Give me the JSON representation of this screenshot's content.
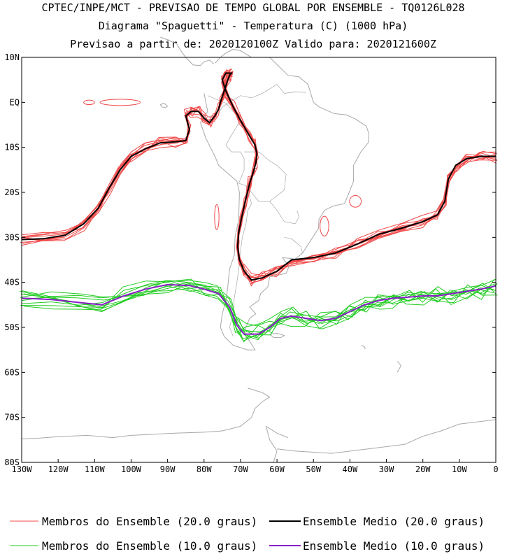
{
  "chart_data": {
    "type": "line",
    "title": [
      "CPTEC/INPE/MCT - PREVISAO DE TEMPO GLOBAL POR ENSEMBLE - TQ0126L028",
      "Diagrama \"Spaguetti\" - Temperatura (C) (1000 hPa)",
      "Previsao a partir de: 2020120100Z  Valido para: 2020121600Z"
    ],
    "x_range": [
      -130,
      0
    ],
    "y_range": [
      -80,
      10
    ],
    "x_ticks": [
      {
        "value": -130,
        "label": "130W"
      },
      {
        "value": -120,
        "label": "120W"
      },
      {
        "value": -110,
        "label": "110W"
      },
      {
        "value": -100,
        "label": "100W"
      },
      {
        "value": -90,
        "label": "90W"
      },
      {
        "value": -80,
        "label": "80W"
      },
      {
        "value": -70,
        "label": "70W"
      },
      {
        "value": -60,
        "label": "60W"
      },
      {
        "value": -50,
        "label": "50W"
      },
      {
        "value": -40,
        "label": "40W"
      },
      {
        "value": -30,
        "label": "30W"
      },
      {
        "value": -20,
        "label": "20W"
      },
      {
        "value": -10,
        "label": "10W"
      },
      {
        "value": 0,
        "label": "0"
      }
    ],
    "y_ticks": [
      {
        "value": 10,
        "label": "10N"
      },
      {
        "value": 0,
        "label": "EQ"
      },
      {
        "value": -10,
        "label": "10S"
      },
      {
        "value": -20,
        "label": "20S"
      },
      {
        "value": -30,
        "label": "30S"
      },
      {
        "value": -40,
        "label": "40S"
      },
      {
        "value": -50,
        "label": "50S"
      },
      {
        "value": -60,
        "label": "60S"
      },
      {
        "value": -70,
        "label": "70S"
      },
      {
        "value": -80,
        "label": "80S"
      }
    ],
    "series": [
      {
        "name": "Membros do Ensemble (20.0 graus)",
        "role": "members",
        "color": "#f04848",
        "member_count": 10,
        "x": [
          -130,
          -124,
          -118,
          -113,
          -109,
          -106,
          -103,
          -100,
          -96,
          -92,
          -88,
          -85,
          -84,
          -85,
          -83.5,
          -81.5,
          -80,
          -78.5,
          -77,
          -76,
          -75.5,
          -74.5,
          -73.5,
          -73,
          -72.5,
          -74,
          -75,
          -74,
          -72,
          -70,
          -67.5,
          -66,
          -65.5,
          -65.8,
          -66.5,
          -67.5,
          -68.7,
          -69.8,
          -70.5,
          -70.8,
          -70.3,
          -69,
          -67,
          -64,
          -60,
          -56,
          -50,
          -44,
          -38,
          -32,
          -26,
          -20,
          -16,
          -14,
          -13,
          -11,
          -8,
          -4,
          0
        ],
        "y": [
          -30.5,
          -30.3,
          -29.5,
          -27,
          -23.5,
          -19,
          -15,
          -12,
          -10.3,
          -9,
          -8.8,
          -8.5,
          -6,
          -3,
          -2,
          -2,
          -3.5,
          -4.5,
          -3,
          -1.5,
          0,
          2.5,
          5,
          6,
          6.5,
          6.5,
          5,
          2.5,
          -1,
          -4,
          -7.5,
          -9.5,
          -11.5,
          -13.5,
          -15.5,
          -18,
          -22,
          -26,
          -29,
          -32,
          -35,
          -37.5,
          -39.5,
          -39,
          -37.5,
          -35,
          -34.5,
          -33.5,
          -31.5,
          -29.3,
          -28,
          -26.5,
          -25,
          -22,
          -17,
          -14,
          -12.5,
          -12,
          -12
        ],
        "spread": 1.1
      },
      {
        "name": "Ensemble Medio (20.0 graus)",
        "role": "mean",
        "color": "#000000",
        "x": [
          -130,
          -124,
          -118,
          -113,
          -109,
          -106,
          -103,
          -100,
          -96,
          -92,
          -88,
          -85,
          -84,
          -85,
          -83.5,
          -81.5,
          -80,
          -78.5,
          -77,
          -76,
          -75.5,
          -74.5,
          -73.5,
          -73,
          -72.5,
          -74,
          -75,
          -74,
          -72,
          -70,
          -67.5,
          -66,
          -65.5,
          -65.8,
          -66.5,
          -67.5,
          -68.7,
          -69.8,
          -70.5,
          -70.8,
          -70.3,
          -69,
          -67,
          -64,
          -60,
          -56,
          -50,
          -44,
          -38,
          -32,
          -26,
          -20,
          -16,
          -14,
          -13,
          -11,
          -8,
          -4,
          0
        ],
        "y": [
          -30.5,
          -30.3,
          -29.5,
          -27,
          -23.5,
          -19,
          -15,
          -12,
          -10.3,
          -9,
          -8.8,
          -8.5,
          -6,
          -3,
          -2,
          -2,
          -3.5,
          -4.5,
          -3,
          -1.5,
          0,
          2.5,
          5,
          6,
          6.5,
          6.5,
          5,
          2.5,
          -1,
          -4,
          -7.5,
          -9.5,
          -11.5,
          -13.5,
          -15.5,
          -18,
          -22,
          -26,
          -29,
          -32,
          -35,
          -37.5,
          -39.5,
          -39,
          -37.5,
          -35,
          -34.5,
          -33.5,
          -31.5,
          -29.3,
          -28,
          -26.5,
          -25,
          -22,
          -17,
          -14,
          -12.5,
          -12,
          -12
        ]
      },
      {
        "name": "Membros do Ensemble (10.0 graus)",
        "role": "members",
        "color": "#22cc22",
        "member_count": 10,
        "x": [
          -130,
          -122,
          -114,
          -108,
          -102,
          -96,
          -90,
          -84,
          -80,
          -76,
          -73,
          -71,
          -69,
          -65,
          -62,
          -59,
          -56,
          -52,
          -48,
          -44,
          -40,
          -36,
          -32,
          -28,
          -24,
          -20,
          -16,
          -12,
          -8,
          -4,
          0
        ],
        "y": [
          -43.5,
          -43.8,
          -44.5,
          -45,
          -43,
          -41.5,
          -40.5,
          -40.7,
          -41.5,
          -42.5,
          -45.5,
          -49.5,
          -51.5,
          -51.5,
          -50,
          -48,
          -47.5,
          -48,
          -48.5,
          -48,
          -46.5,
          -45,
          -44,
          -43.5,
          -43.3,
          -43,
          -43,
          -42.5,
          -42,
          -41.5,
          -40.8
        ],
        "spread": 1.5
      },
      {
        "name": "Ensemble Medio (10.0 graus)",
        "role": "mean",
        "color": "#8a1fc9",
        "x": [
          -130,
          -122,
          -114,
          -108,
          -102,
          -96,
          -90,
          -84,
          -80,
          -76,
          -73,
          -71,
          -69,
          -65,
          -62,
          -59,
          -56,
          -52,
          -48,
          -44,
          -40,
          -36,
          -32,
          -28,
          -24,
          -20,
          -16,
          -12,
          -8,
          -4,
          0
        ],
        "y": [
          -43.5,
          -43.8,
          -44.5,
          -45,
          -43,
          -41.5,
          -40.5,
          -40.7,
          -41.5,
          -42.5,
          -45.5,
          -49.5,
          -51.5,
          -51.5,
          -50,
          -48,
          -47.5,
          -48,
          -48.5,
          -48,
          -46.5,
          -45,
          -44,
          -43.5,
          -43.3,
          -43,
          -43,
          -42.5,
          -42,
          -41.5,
          -40.8
        ]
      }
    ],
    "extra_contours": [
      {
        "color": "#f04848",
        "cx": -103,
        "cy": 0,
        "rx": 5.5,
        "ry": 0.7
      },
      {
        "color": "#f04848",
        "cx": -111.5,
        "cy": 0,
        "rx": 1.5,
        "ry": 0.5
      },
      {
        "color": "#f04848",
        "cx": -38.5,
        "cy": -22,
        "rx": 1.6,
        "ry": 1.3
      },
      {
        "color": "#f04848",
        "cx": -47,
        "cy": -27.5,
        "rx": 1.2,
        "ry": 2.2
      },
      {
        "color": "#f04848",
        "cx": -76.5,
        "cy": -25.5,
        "rx": 0.6,
        "ry": 2.8
      }
    ],
    "legend": [
      {
        "label": "Membros do Ensemble (20.0 graus)",
        "color": "#f04848"
      },
      {
        "label": "Ensemble Medio (20.0 graus)",
        "color": "#000000"
      },
      {
        "label": "Membros do Ensemble (10.0 graus)",
        "color": "#22cc22"
      },
      {
        "label": "Ensemble Medio (10.0 graus)",
        "color": "#8a1fc9"
      }
    ],
    "map_color": "#a8a8a8"
  }
}
